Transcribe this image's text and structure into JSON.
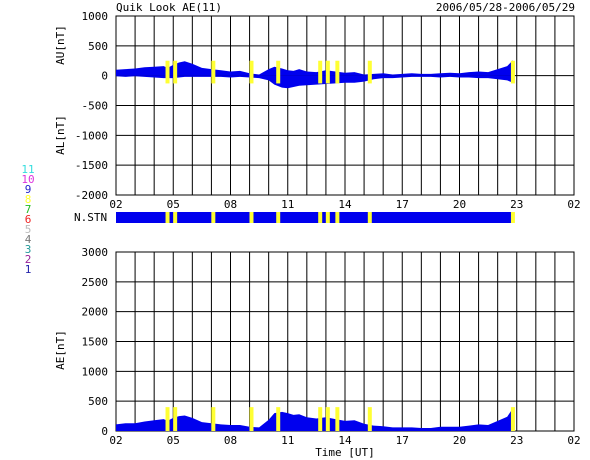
{
  "header": {
    "title": "Quik Look AE(11)",
    "date_range": "2006/05/28-2006/05/29"
  },
  "colors": {
    "series_fill": "#0000ee",
    "station_flag": "#ffff33",
    "grid": "#000000",
    "background": "#ffffff"
  },
  "station_legend": {
    "items": [
      {
        "label": "11",
        "color": "#33dddd"
      },
      {
        "label": "10",
        "color": "#dd33dd"
      },
      {
        "label": "9",
        "color": "#2222cc"
      },
      {
        "label": "8",
        "color": "#ffff33"
      },
      {
        "label": "7",
        "color": "#22bb22"
      },
      {
        "label": "6",
        "color": "#ee2222"
      },
      {
        "label": "5",
        "color": "#bbbbbb"
      },
      {
        "label": "4",
        "color": "#777777"
      },
      {
        "label": "3",
        "color": "#229999"
      },
      {
        "label": "2",
        "color": "#992299"
      },
      {
        "label": "1",
        "color": "#2222aa"
      }
    ]
  },
  "station_bar": {
    "label": "N.STN",
    "station_count": 11,
    "drop_hours": [
      28.7,
      29.1,
      31.1,
      33.1,
      34.5,
      36.7,
      37.1,
      37.6,
      39.3,
      46.8
    ]
  },
  "chart_data": [
    {
      "type": "area",
      "title": "",
      "ylabel_top": "AU[nT]",
      "ylabel_bottom": "AL[nT]",
      "xlim": [
        26,
        50
      ],
      "ylim": [
        -2000,
        1000
      ],
      "yticks": [
        1000,
        500,
        0,
        -500,
        -1000,
        -1500,
        -2000
      ],
      "xtick_labels": [
        "02",
        "05",
        "08",
        "11",
        "14",
        "17",
        "20",
        "23",
        "02"
      ],
      "xtick_hours": [
        26,
        29,
        32,
        35,
        38,
        41,
        44,
        47,
        50
      ],
      "grid": true,
      "x_hours": [
        26,
        26.5,
        27,
        27.5,
        28,
        28.5,
        28.7,
        29,
        29.3,
        29.6,
        30,
        30.5,
        31,
        31.5,
        32,
        32.5,
        33,
        33.5,
        34,
        34.3,
        34.7,
        35,
        35.3,
        35.6,
        36,
        36.5,
        37,
        37.5,
        38,
        38.5,
        39,
        39.5,
        40,
        40.5,
        41,
        41.5,
        42,
        42.5,
        43,
        43.5,
        44,
        44.5,
        45,
        45.5,
        46,
        46.5,
        46.8
      ],
      "series": [
        {
          "name": "AU",
          "values": [
            100,
            110,
            120,
            140,
            150,
            160,
            130,
            180,
            220,
            240,
            200,
            130,
            110,
            90,
            70,
            80,
            40,
            20,
            110,
            150,
            120,
            90,
            80,
            110,
            70,
            60,
            90,
            70,
            50,
            60,
            20,
            30,
            40,
            20,
            30,
            40,
            30,
            30,
            40,
            50,
            40,
            60,
            70,
            60,
            110,
            160,
            260
          ]
        },
        {
          "name": "AL",
          "values": [
            -10,
            -20,
            -10,
            -20,
            -30,
            -40,
            -40,
            -40,
            -30,
            -20,
            -20,
            -20,
            -20,
            -20,
            -30,
            -20,
            -30,
            -40,
            -80,
            -150,
            -200,
            -210,
            -190,
            -170,
            -160,
            -150,
            -140,
            -130,
            -120,
            -120,
            -100,
            -60,
            -40,
            -40,
            -30,
            -20,
            -20,
            -20,
            -30,
            -20,
            -30,
            -30,
            -40,
            -40,
            -60,
            -80,
            -120
          ]
        }
      ]
    },
    {
      "type": "area",
      "title": "",
      "ylabel": "AE[nT]",
      "xlabel": "Time [UT]",
      "xlim": [
        26,
        50
      ],
      "ylim": [
        0,
        3000
      ],
      "yticks": [
        3000,
        2500,
        2000,
        1500,
        1000,
        500,
        0
      ],
      "xtick_labels": [
        "02",
        "05",
        "08",
        "11",
        "14",
        "17",
        "20",
        "23",
        "02"
      ],
      "xtick_hours": [
        26,
        29,
        32,
        35,
        38,
        41,
        44,
        47,
        50
      ],
      "grid": true,
      "x_hours": [
        26,
        26.5,
        27,
        27.5,
        28,
        28.5,
        28.7,
        29,
        29.3,
        29.6,
        30,
        30.5,
        31,
        31.5,
        32,
        32.5,
        33,
        33.5,
        34,
        34.3,
        34.7,
        35,
        35.3,
        35.6,
        36,
        36.5,
        37,
        37.5,
        38,
        38.5,
        39,
        39.5,
        40,
        40.5,
        41,
        41.5,
        42,
        42.5,
        43,
        43.5,
        44,
        44.5,
        45,
        45.5,
        46,
        46.5,
        46.8
      ],
      "series": [
        {
          "name": "AE",
          "values": [
            110,
            130,
            130,
            160,
            180,
            200,
            170,
            220,
            250,
            260,
            220,
            150,
            130,
            110,
            100,
            100,
            70,
            60,
            190,
            300,
            320,
            300,
            270,
            280,
            230,
            210,
            230,
            200,
            170,
            180,
            120,
            90,
            80,
            60,
            60,
            60,
            50,
            50,
            70,
            70,
            70,
            90,
            110,
            100,
            170,
            240,
            380
          ]
        }
      ],
      "station_flag_hours": [
        28.7,
        29.1,
        31.1,
        33.1,
        34.5,
        36.7,
        37.1,
        37.6,
        39.3,
        46.8
      ]
    }
  ]
}
